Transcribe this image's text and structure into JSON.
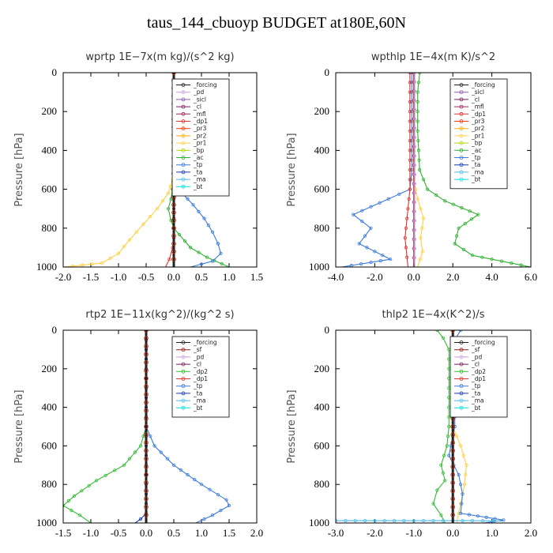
{
  "figure": {
    "title": "taus_144_cbuoyp  BUDGET at180E,60N"
  },
  "colors": {
    "forcing": "#222222",
    "sf": "#8b1a1a",
    "pd": "#c8a0d8",
    "sicl": "#8a5ab0",
    "cl": "#7a1a5a",
    "mfl": "#a0205a",
    "dp1": "#e03030",
    "dp2": "#33bb33",
    "pr3": "#ff3300",
    "pr2": "#ffaa00",
    "pr1": "#ffd040",
    "bp": "#b8d000",
    "ac": "#30b030",
    "tp": "#3a7ad8",
    "ta": "#1a3ab0",
    "ma": "#4ab8e8",
    "bt": "#00e0e0"
  },
  "chart_data": [
    {
      "type": "line",
      "title": "wprtp  1E−7x(m kg)/(s^2 kg)",
      "ylabel": "Pressure  [hPa]",
      "xlim": [
        -2.0,
        1.5
      ],
      "ylim": [
        1000,
        0
      ],
      "xticks": [
        "-2.0",
        "-1.5",
        "-1.0",
        "-0.5",
        "0.0",
        "0.5",
        "1.0",
        "1.5"
      ],
      "yticks": [
        "0",
        "200",
        "400",
        "600",
        "800",
        "1000"
      ],
      "legend": [
        "_forcing",
        "_pd",
        "_sicl",
        "_cl",
        "_mfl",
        "_dp1",
        "_pr3",
        "_pr2",
        "_pr1",
        "_bp",
        "_ac",
        "_tp",
        "_ta",
        "_ma",
        "_bt"
      ],
      "series": [
        {
          "key": "pr1",
          "points": [
            [
              0,
              0
            ],
            [
              0,
              500
            ],
            [
              -0.02,
              550
            ],
            [
              -0.1,
              620
            ],
            [
              -0.3,
              700
            ],
            [
              -0.55,
              780
            ],
            [
              -0.8,
              860
            ],
            [
              -1.0,
              930
            ],
            [
              -1.3,
              980
            ],
            [
              -2.0,
              1000
            ]
          ]
        },
        {
          "key": "ac",
          "points": [
            [
              0,
              0
            ],
            [
              0,
              550
            ],
            [
              -0.05,
              650
            ],
            [
              -0.1,
              700
            ],
            [
              -0.05,
              760
            ],
            [
              0,
              800
            ],
            [
              0.3,
              900
            ],
            [
              0.6,
              950
            ],
            [
              1.0,
              1000
            ]
          ]
        },
        {
          "key": "tp",
          "points": [
            [
              0,
              0
            ],
            [
              0,
              560
            ],
            [
              0.15,
              620
            ],
            [
              0.35,
              680
            ],
            [
              0.55,
              750
            ],
            [
              0.7,
              820
            ],
            [
              0.8,
              880
            ],
            [
              0.85,
              930
            ],
            [
              0.7,
              970
            ],
            [
              0.3,
              1000
            ]
          ]
        },
        {
          "key": "dp1",
          "points": [
            [
              0,
              0
            ],
            [
              0,
              850
            ],
            [
              -0.02,
              900
            ],
            [
              -0.08,
              960
            ],
            [
              -0.15,
              1000
            ]
          ]
        },
        {
          "key": "forcing",
          "points": [
            [
              0,
              0
            ],
            [
              0,
              1000
            ]
          ]
        }
      ]
    },
    {
      "type": "line",
      "title": "wpthlp  1E−4x(m K)/s^2",
      "ylabel": "Pressure  [hPa]",
      "xlim": [
        -4.0,
        6.0
      ],
      "ylim": [
        1000,
        0
      ],
      "xticks": [
        "-4.0",
        "-2.0",
        "0.0",
        "2.0",
        "4.0",
        "6.0"
      ],
      "yticks": [
        "0",
        "200",
        "400",
        "600",
        "800",
        "1000"
      ],
      "legend": [
        "_forcing",
        "_sicl",
        "_cl",
        "_mfl",
        "_dp1",
        "_pr3",
        "_pr2",
        "_pr1",
        "_bp",
        "_ac",
        "_tp",
        "_ta",
        "_ma",
        "_bt"
      ],
      "series": [
        {
          "key": "ac",
          "points": [
            [
              0.3,
              0
            ],
            [
              0.2,
              100
            ],
            [
              0.2,
              300
            ],
            [
              0.3,
              500
            ],
            [
              0.7,
              600
            ],
            [
              1.6,
              660
            ],
            [
              3.3,
              730
            ],
            [
              2.3,
              800
            ],
            [
              2.1,
              880
            ],
            [
              3.0,
              940
            ],
            [
              5.0,
              980
            ],
            [
              6.0,
              1000
            ]
          ]
        },
        {
          "key": "tp",
          "points": [
            [
              -0.1,
              0
            ],
            [
              -0.1,
              500
            ],
            [
              -0.2,
              600
            ],
            [
              -1.3,
              650
            ],
            [
              -3.1,
              730
            ],
            [
              -2.2,
              800
            ],
            [
              -2.8,
              880
            ],
            [
              -2.0,
              920
            ],
            [
              -1.2,
              960
            ],
            [
              -3.7,
              1000
            ]
          ]
        },
        {
          "key": "pr1",
          "points": [
            [
              0,
              0
            ],
            [
              0,
              550
            ],
            [
              0.2,
              650
            ],
            [
              0.5,
              750
            ],
            [
              0.35,
              850
            ],
            [
              0.45,
              920
            ],
            [
              0.2,
              1000
            ]
          ]
        },
        {
          "key": "dp1",
          "points": [
            [
              -0.2,
              0
            ],
            [
              -0.2,
              600
            ],
            [
              -0.35,
              750
            ],
            [
              -0.45,
              850
            ],
            [
              -0.35,
              950
            ],
            [
              -0.3,
              1000
            ]
          ]
        },
        {
          "key": "mfl",
          "points": [
            [
              0,
              0
            ],
            [
              0,
              1000
            ]
          ]
        },
        {
          "key": "pd",
          "points": [
            [
              0.05,
              0
            ],
            [
              0.05,
              1000
            ]
          ]
        }
      ]
    },
    {
      "type": "line",
      "title": "rtp2  1E−11x(kg^2)/(kg^2 s)",
      "ylabel": "Pressure  [hPa]",
      "xlim": [
        -1.5,
        2.0
      ],
      "ylim": [
        1000,
        0
      ],
      "xticks": [
        "-1.5",
        "-1.0",
        "-0.5",
        "0.0",
        "0.5",
        "1.0",
        "1.5",
        "2.0"
      ],
      "yticks": [
        "0",
        "200",
        "400",
        "600",
        "800",
        "1000"
      ],
      "legend": [
        "_forcing",
        "_sf",
        "_pd",
        "_cl",
        "_dp2",
        "_dp1",
        "_tp",
        "_ta",
        "_ma",
        "_bt"
      ],
      "series": [
        {
          "key": "dp2",
          "points": [
            [
              0,
              0
            ],
            [
              0,
              500
            ],
            [
              -0.1,
              600
            ],
            [
              -0.4,
              700
            ],
            [
              -0.9,
              780
            ],
            [
              -1.3,
              860
            ],
            [
              -1.5,
              910
            ],
            [
              -1.2,
              960
            ],
            [
              -1.0,
              1000
            ]
          ]
        },
        {
          "key": "tp",
          "points": [
            [
              0,
              0
            ],
            [
              0,
              500
            ],
            [
              0.15,
              600
            ],
            [
              0.5,
              700
            ],
            [
              1.0,
              800
            ],
            [
              1.45,
              880
            ],
            [
              1.5,
              910
            ],
            [
              1.2,
              960
            ],
            [
              0.9,
              1000
            ]
          ]
        },
        {
          "key": "ta",
          "points": [
            [
              0,
              0
            ],
            [
              0,
              950
            ],
            [
              -0.1,
              980
            ],
            [
              -0.2,
              1000
            ]
          ]
        },
        {
          "key": "forcing",
          "points": [
            [
              0,
              0
            ],
            [
              0,
              1000
            ]
          ]
        }
      ]
    },
    {
      "type": "line",
      "title": "thlp2  1E−4x(K^2)/s",
      "ylabel": "Pressure  [hPa]",
      "xlim": [
        -3.0,
        2.0
      ],
      "ylim": [
        1000,
        0
      ],
      "xticks": [
        "-3.0",
        "-2.0",
        "-1.0",
        "0.0",
        "1.0",
        "2.0"
      ],
      "yticks": [
        "0",
        "200",
        "400",
        "600",
        "800",
        "1000"
      ],
      "legend": [
        "_forcing",
        "_sf",
        "_pd",
        "_cl",
        "_dp2",
        "_dp1",
        "_tp",
        "_ta",
        "_ma",
        "_bt"
      ],
      "series": [
        {
          "key": "dp2",
          "points": [
            [
              -0.4,
              0
            ],
            [
              -0.25,
              40
            ],
            [
              -0.1,
              100
            ],
            [
              -0.1,
              500
            ],
            [
              -0.15,
              600
            ],
            [
              -0.3,
              700
            ],
            [
              -0.2,
              780
            ],
            [
              -0.4,
              830
            ],
            [
              -0.5,
              900
            ],
            [
              -0.3,
              960
            ],
            [
              -0.2,
              1000
            ]
          ]
        },
        {
          "key": "pr1",
          "points": [
            [
              0,
              0
            ],
            [
              0,
              500
            ],
            [
              0.2,
              600
            ],
            [
              0.35,
              700
            ],
            [
              0.3,
              800
            ],
            [
              0.2,
              900
            ],
            [
              0.1,
              1000
            ]
          ]
        },
        {
          "key": "tp",
          "points": [
            [
              0.2,
              0
            ],
            [
              0.05,
              50
            ],
            [
              0.05,
              500
            ],
            [
              -0.1,
              650
            ],
            [
              0.15,
              750
            ],
            [
              0.25,
              850
            ],
            [
              0.2,
              950
            ],
            [
              1.3,
              985
            ],
            [
              0.8,
              1000
            ]
          ]
        },
        {
          "key": "ma",
          "points": [
            [
              -3.0,
              988
            ],
            [
              -0.5,
              988
            ],
            [
              0.0,
              988
            ],
            [
              0.5,
              988
            ],
            [
              1.3,
              990
            ]
          ]
        },
        {
          "key": "forcing",
          "points": [
            [
              0,
              0
            ],
            [
              0,
              1000
            ]
          ]
        }
      ]
    }
  ]
}
